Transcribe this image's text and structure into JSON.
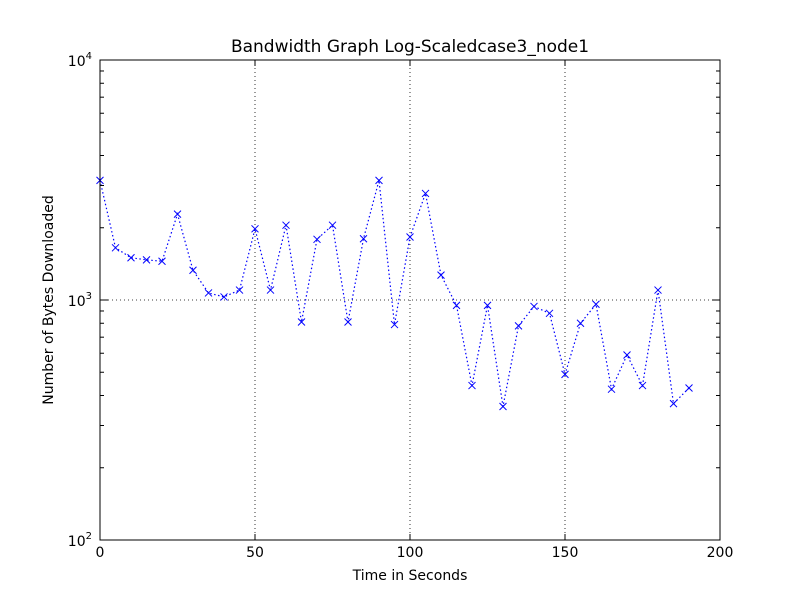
{
  "chart_data": {
    "type": "line",
    "title": "Bandwidth Graph Log-Scaledcase3_node1",
    "xlabel": "Time in Seconds",
    "ylabel": "Number of Bytes Downloaded",
    "xlim": [
      0,
      200
    ],
    "ylim": [
      100,
      10000
    ],
    "yscale": "log",
    "x_ticks": [
      {
        "value": 0,
        "label": "0"
      },
      {
        "value": 50,
        "label": "50"
      },
      {
        "value": 100,
        "label": "100"
      },
      {
        "value": 150,
        "label": "150"
      },
      {
        "value": 200,
        "label": "200"
      }
    ],
    "y_ticks": [
      {
        "value": 100,
        "base": "10",
        "exp": "2"
      },
      {
        "value": 1000,
        "base": "10",
        "exp": "3"
      },
      {
        "value": 10000,
        "base": "10",
        "exp": "4"
      }
    ],
    "grid": true,
    "marker": "x",
    "line_style": "dotted",
    "color": "#0000ff",
    "series": [
      {
        "x": [
          0,
          5,
          10,
          15,
          20,
          25,
          30,
          35,
          40,
          45,
          50,
          55,
          60,
          65,
          70,
          75,
          80,
          85,
          90,
          95,
          100,
          105,
          110,
          115,
          120,
          125,
          130,
          135,
          140,
          145,
          150,
          155,
          160,
          165,
          170,
          175,
          180,
          185,
          190
        ],
        "y": [
          3150,
          1650,
          1500,
          1470,
          1450,
          2280,
          1330,
          1070,
          1030,
          1100,
          1980,
          1100,
          2050,
          810,
          1790,
          2050,
          810,
          1800,
          3150,
          790,
          1830,
          2780,
          1270,
          950,
          440,
          950,
          360,
          780,
          940,
          880,
          490,
          800,
          960,
          425,
          590,
          440,
          1100,
          370,
          430
        ]
      }
    ]
  }
}
